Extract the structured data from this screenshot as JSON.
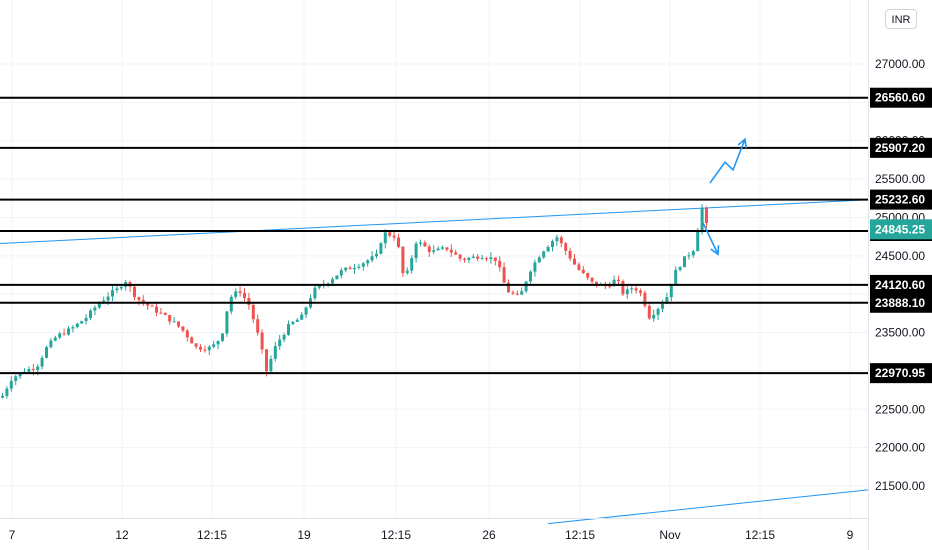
{
  "currency": "INR",
  "chart_data": {
    "type": "candlestick",
    "title": "",
    "xlabel": "",
    "ylabel": "",
    "ylim": [
      21050,
      27350
    ],
    "colors": {
      "up": "#26a69a",
      "down": "#ef5350",
      "trendline": "#2196f3",
      "level": "#000000",
      "current": "#26a69a"
    },
    "x_ticks": [
      "7",
      "12",
      "12:15",
      "19",
      "12:15",
      "26",
      "12:15",
      "Nov",
      "12:15",
      "9"
    ],
    "y_ticks": [
      27000,
      26500,
      26000,
      25500,
      25000,
      24500,
      24000,
      23500,
      23000,
      22500,
      22000,
      21500
    ],
    "y_tick_labels": [
      "27000.00",
      "26500.00",
      "26000.00",
      "25500.00",
      "25000.00",
      "24500.00",
      "24000.00",
      "23500.00",
      "23000.00",
      "22500.00",
      "22000.00",
      "21500.00"
    ],
    "levels": [
      26560.6,
      25907.2,
      25232.6,
      24823.6,
      24120.6,
      23888.1,
      22970.95
    ],
    "level_labels": [
      "26560.60",
      "25907.20",
      "25232.60",
      "24823.60",
      "24120.60",
      "23888.10",
      "22970.95"
    ],
    "current_price": 24845.25,
    "current_price_label": "24845.25",
    "price_path": [
      [
        0,
        22650
      ],
      [
        10,
        22900
      ],
      [
        22,
        23000
      ],
      [
        35,
        23050
      ],
      [
        45,
        23300
      ],
      [
        55,
        23450
      ],
      [
        70,
        23550
      ],
      [
        85,
        23700
      ],
      [
        95,
        23850
      ],
      [
        108,
        24000
      ],
      [
        118,
        24080
      ],
      [
        123,
        24200
      ],
      [
        135,
        23950
      ],
      [
        150,
        23820
      ],
      [
        165,
        23700
      ],
      [
        180,
        23550
      ],
      [
        195,
        23300
      ],
      [
        210,
        23300
      ],
      [
        220,
        23450
      ],
      [
        228,
        23950
      ],
      [
        238,
        24050
      ],
      [
        248,
        23850
      ],
      [
        258,
        23400
      ],
      [
        265,
        23000
      ],
      [
        275,
        23350
      ],
      [
        288,
        23600
      ],
      [
        300,
        23700
      ],
      [
        312,
        24050
      ],
      [
        325,
        24150
      ],
      [
        340,
        24300
      ],
      [
        360,
        24400
      ],
      [
        375,
        24500
      ],
      [
        382,
        24800
      ],
      [
        395,
        24750
      ],
      [
        403,
        24150
      ],
      [
        415,
        24700
      ],
      [
        430,
        24550
      ],
      [
        445,
        24600
      ],
      [
        460,
        24450
      ],
      [
        480,
        24500
      ],
      [
        495,
        24450
      ],
      [
        505,
        24050
      ],
      [
        518,
        23950
      ],
      [
        528,
        24300
      ],
      [
        540,
        24550
      ],
      [
        555,
        24750
      ],
      [
        565,
        24550
      ],
      [
        575,
        24350
      ],
      [
        590,
        24150
      ],
      [
        605,
        24100
      ],
      [
        615,
        24200
      ],
      [
        622,
        24000
      ],
      [
        632,
        24100
      ],
      [
        640,
        24000
      ],
      [
        648,
        23700
      ],
      [
        655,
        23800
      ],
      [
        665,
        23950
      ],
      [
        672,
        24250
      ],
      [
        682,
        24450
      ],
      [
        693,
        24600
      ],
      [
        700,
        25150
      ],
      [
        706,
        24850
      ]
    ],
    "trendlines": [
      {
        "from": [
          0,
          24660
        ],
        "to": [
          868,
          25230
        ]
      },
      {
        "from": [
          548,
          21010
        ],
        "to": [
          868,
          21450
        ]
      }
    ],
    "arrows": [
      {
        "points": [
          [
            710,
            25450
          ],
          [
            725,
            25720
          ],
          [
            733,
            25620
          ],
          [
            745,
            26020
          ]
        ]
      },
      {
        "points": [
          [
            703,
            24930
          ],
          [
            718,
            24520
          ]
        ]
      }
    ]
  }
}
